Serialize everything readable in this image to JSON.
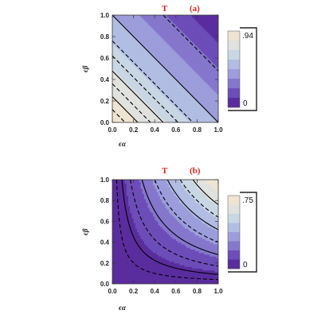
{
  "chart_data": [
    {
      "type": "heatmap",
      "panel": "(a)",
      "title_prefix": "T",
      "title_tag": "(a)",
      "xlabel": "ϵα",
      "ylabel": "ϵβ",
      "xlim": [
        0,
        1
      ],
      "ylim": [
        0,
        1
      ],
      "xticks": [
        "0.0",
        "0.2",
        "0.4",
        "0.6",
        "0.8",
        "1.0"
      ],
      "yticks": [
        "0.0",
        "0.2",
        "0.4",
        "0.6",
        "0.8",
        "1.0"
      ],
      "legend": {
        "top": ".94",
        "bottom": "0"
      },
      "contour_levels": [
        0.12,
        0.23,
        0.35,
        0.47,
        0.59,
        0.7,
        0.82
      ],
      "contours": [
        {
          "x_plus_y": 0.12,
          "style": "dashed"
        },
        {
          "x_plus_y": 0.24,
          "style": "solid"
        },
        {
          "x_plus_y": 0.36,
          "style": "dashed"
        },
        {
          "x_plus_y": 0.48,
          "style": "solid"
        },
        {
          "x_plus_y": 0.62,
          "style": "dashed"
        },
        {
          "x_plus_y": 0.76,
          "style": "dashed"
        },
        {
          "x_plus_y": 1.0,
          "style": "solid"
        },
        {
          "x_plus_y": 1.48,
          "style": "dashed"
        }
      ]
    },
    {
      "type": "heatmap",
      "panel": "(b)",
      "title_prefix": "T",
      "title_tag": "(b)",
      "xlabel": "ϵα",
      "ylabel": "ϵβ",
      "xlim": [
        0,
        1
      ],
      "ylim": [
        0,
        1
      ],
      "xticks": [
        "0.0",
        "0.2",
        "0.4",
        "0.6",
        "0.8",
        "1.0"
      ],
      "yticks": [
        "0.0",
        "0.2",
        "0.4",
        "0.6",
        "0.8",
        "1.0"
      ],
      "legend": {
        "top": ".75",
        "bottom": "0"
      },
      "contour_levels": [
        0.09,
        0.19,
        0.28,
        0.38,
        0.47,
        0.56,
        0.66
      ],
      "contours": [
        {
          "xy_product": 0.04,
          "style": "dashed"
        },
        {
          "xy_product": 0.09,
          "style": "solid"
        },
        {
          "xy_product": 0.17,
          "style": "dashed"
        },
        {
          "xy_product": 0.28,
          "style": "solid"
        },
        {
          "xy_product": 0.4,
          "style": "dashed"
        },
        {
          "xy_product": 0.52,
          "style": "solid"
        },
        {
          "xy_product": 0.64,
          "style": "dashed"
        },
        {
          "xy_product": 0.76,
          "style": "solid"
        }
      ]
    }
  ],
  "colors": {
    "palette_high_to_low": [
      "#efe4d2",
      "#dfe2de",
      "#c9d6e4",
      "#b2bde3",
      "#9c9ddb",
      "#8577cc",
      "#6d4db8",
      "#5a2d9e"
    ],
    "title": "#e0261b",
    "contour": "#000000"
  }
}
